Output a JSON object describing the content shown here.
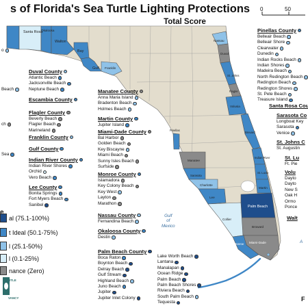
{
  "title": "s of Florida's Sea Turtle Lighting Protections",
  "subtitle": "Total Score",
  "scale": {
    "zero": "0",
    "fifty": "50"
  },
  "colors": {
    "ideal": "#1f4e8c",
    "almost_ideal": "#3f87c6",
    "better": "#8fc2e8",
    "minimal": "#d8eef8",
    "no_ordinance": "#8a8a8a",
    "land": "#e3ddcd",
    "water": "#ffffff"
  },
  "legend": {
    "title": "e",
    "items": [
      {
        "label": "al (75.1-100%)",
        "color": "#1f4e8c"
      },
      {
        "label": "t Ideal (50.1-75%)",
        "color": "#3f87c6"
      },
      {
        "label": "l (25.1-50%)",
        "color": "#8fc2e8"
      },
      {
        "label": "l (0.1-25%)",
        "color": "#d8eef8"
      },
      {
        "label": "nance (Zero)",
        "color": "#8a8a8a"
      }
    ]
  },
  "map_labels": {
    "santa_rosa": "Santa Rosa",
    "okaloosa": "Okaloosa",
    "walton": "Walton",
    "bay": "Bay",
    "gulf": "Gulf",
    "franklin": "Franklin",
    "nassau": "Nassau",
    "duval": "Duval",
    "st_johns": "St. Johns",
    "flagler": "Flagler",
    "volusia": "Volusia",
    "brevard": "Brevard",
    "indian_river": "Indian River",
    "st_lucie": "St. Lucie",
    "martin": "Martin",
    "palm_beach": "Palm Beach",
    "broward": "Broward",
    "miami_dade": "Miami-Dade",
    "monroe": "Monroe",
    "collier": "Collier",
    "lee": "Lee",
    "charlotte": "Charlotte",
    "sarasota": "Sarasota",
    "manatee": "Manatee",
    "pinellas": "Pinellas"
  },
  "water_labels": {
    "gulf": "Gulf\nof\nMexico",
    "atlantic": "A"
  },
  "counties": [
    {
      "name": "Duval County",
      "status": "#8fc2e8",
      "beaches": [
        {
          "name": "Atlantic Beach",
          "status": "#3f87c6"
        },
        {
          "name": "Jacksonville Beach",
          "status": "#3f87c6"
        },
        {
          "name": "Neptune Beach",
          "status": "#3f87c6"
        }
      ]
    },
    {
      "name": "Escambia County",
      "status": "#3f87c6",
      "beaches": []
    },
    {
      "name": "Flagler County",
      "status": "#8a8a8a",
      "beaches": [
        {
          "name": "Beverly Beach",
          "status": "#8a8a8a"
        },
        {
          "name": "Flagler Beach",
          "status": "#8a8a8a"
        },
        {
          "name": "Marineland",
          "status": "#8a8a8a"
        }
      ]
    },
    {
      "name": "Franklin County",
      "status": "#8fc2e8",
      "beaches": []
    },
    {
      "name": "Gulf County",
      "status": "#3f87c6",
      "beaches": []
    },
    {
      "name": "Indian River County",
      "status": "#3f87c6",
      "beaches": [
        {
          "name": "Indian River Shores",
          "status": "#3f87c6"
        },
        {
          "name": "Orchid",
          "status": "#d8eef8"
        },
        {
          "name": "Vero Beach",
          "status": "#3f87c6"
        }
      ]
    },
    {
      "name": "Lee County",
      "status": "#3f87c6",
      "beaches": [
        {
          "name": "Bonita Springs",
          "status": "#3f87c6"
        },
        {
          "name": "Fort Myers Beach",
          "status": "#3f87c6"
        },
        {
          "name": "Sanibel",
          "status": "#1f4e8c"
        }
      ]
    },
    {
      "name": "Manatee County",
      "status": "#8a8a8a",
      "beaches": [
        {
          "name": "Anna Maria Island",
          "status": "#8fc2e8"
        },
        {
          "name": "Bradenton Beach",
          "status": "#8fc2e8"
        },
        {
          "name": "Holmes Beach",
          "status": "#8fc2e8"
        }
      ]
    },
    {
      "name": "Martin County",
      "status": "#3f87c6",
      "beaches": [
        {
          "name": "Jupiter Island",
          "status": "#3f87c6"
        }
      ]
    },
    {
      "name": "Miami-Dade County",
      "status": "#8a8a8a",
      "beaches": [
        {
          "name": "Bal Harbor",
          "status": "#8a8a8a"
        },
        {
          "name": "Golden Beach",
          "status": "#8a8a8a"
        },
        {
          "name": "Key Biscayne",
          "status": "#8fc2e8"
        },
        {
          "name": "Miami Beach",
          "status": "#8a8a8a"
        },
        {
          "name": "Sunny Isles Beach",
          "status": "#8a8a8a"
        },
        {
          "name": "Surfside",
          "status": "#8a8a8a"
        }
      ]
    },
    {
      "name": "Monroe County",
      "status": "#3f87c6",
      "beaches": [
        {
          "name": "Islamadora",
          "status": "#8a8a8a"
        },
        {
          "name": "Key Colony Beach",
          "status": "#8a8a8a"
        },
        {
          "name": "Key West",
          "status": "#8fc2e8"
        },
        {
          "name": "Layton",
          "status": "#8a8a8a"
        },
        {
          "name": "Marathon",
          "status": "#8a8a8a"
        }
      ]
    },
    {
      "name": "Nassau County",
      "status": "#8fc2e8",
      "beaches": [
        {
          "name": "Fernandina Beach",
          "status": "#8fc2e8"
        }
      ]
    },
    {
      "name": "Okaloosa County",
      "status": "#3f87c6",
      "beaches": [
        {
          "name": "Destin",
          "status": "#8fc2e8"
        }
      ]
    },
    {
      "name": "Palm Beach County",
      "status": "#1f4e8c",
      "beaches": [
        {
          "name": "Boca Raton",
          "status": "#3f87c6"
        },
        {
          "name": "Boynton Beach",
          "status": "#1f4e8c"
        },
        {
          "name": "Delray Beach",
          "status": "#1f4e8c"
        },
        {
          "name": "Gulf Stream",
          "status": "#1f4e8c"
        },
        {
          "name": "Highland Beach",
          "status": "#8fc2e8"
        },
        {
          "name": "Juno Beach",
          "status": "#3f87c6"
        },
        {
          "name": "Jupiter",
          "status": "#1f4e8c"
        },
        {
          "name": "Jupiter Inlet Colony",
          "status": "#1f4e8c"
        }
      ]
    },
    {
      "name": "",
      "status": "",
      "beaches": [
        {
          "name": "Lake Worth Beach",
          "status": "#1f4e8c"
        },
        {
          "name": "Lantana",
          "status": "#1f4e8c"
        },
        {
          "name": "Manalapan",
          "status": "#1f4e8c"
        },
        {
          "name": "Ocean Ridge",
          "status": "#1f4e8c"
        },
        {
          "name": "Palm Beach",
          "status": "#1f4e8c"
        },
        {
          "name": "Palm Beach Shores",
          "status": "#1f4e8c"
        },
        {
          "name": "Riviera Beach",
          "status": "#1f4e8c"
        },
        {
          "name": "South Palm Beach",
          "status": "#8fc2e8"
        },
        {
          "name": "Tequesta",
          "status": "#1f4e8c"
        }
      ]
    },
    {
      "name": "Pinellas County",
      "status": "#3f87c6",
      "beaches": [
        {
          "name": "Belleair Beach",
          "status": "#8fc2e8"
        },
        {
          "name": "Belleair Shore",
          "status": "#8fc2e8"
        },
        {
          "name": "Clearwater",
          "status": "#8fc2e8"
        },
        {
          "name": "Dunedin",
          "status": "#8fc2e8"
        },
        {
          "name": "Indian Rocks Beach",
          "status": "#8fc2e8"
        },
        {
          "name": "Indian Shores",
          "status": "#8fc2e8"
        },
        {
          "name": "Madeira Beach",
          "status": "#8fc2e8"
        },
        {
          "name": "North Redington Beach",
          "status": "#8fc2e8"
        },
        {
          "name": "Redington Beach",
          "status": "#8fc2e8"
        },
        {
          "name": "Redington Shores",
          "status": "#8fc2e8"
        },
        {
          "name": "St. Pete Beach",
          "status": "#8fc2e8"
        },
        {
          "name": "Treasure Island",
          "status": "#3f87c6"
        }
      ]
    },
    {
      "name": "Santa Rosa County",
      "status": "",
      "beaches": []
    },
    {
      "name": "Sarasota Co",
      "status": "",
      "beaches": [
        {
          "name": "Longboat Key",
          "status": ""
        },
        {
          "name": "Sarasota",
          "status": "#3f87c6"
        },
        {
          "name": "Venice",
          "status": "#8fc2e8"
        }
      ]
    },
    {
      "name": "St. Johns C",
      "status": "",
      "beaches": [
        {
          "name": "St. Augustin",
          "status": ""
        }
      ]
    },
    {
      "name": "St. Lu",
      "status": "",
      "beaches": [
        {
          "name": "Ft. Pie",
          "status": ""
        }
      ]
    },
    {
      "name": "Volu",
      "status": "",
      "beaches": [
        {
          "name": "Dayto",
          "status": ""
        },
        {
          "name": "Dayto",
          "status": ""
        },
        {
          "name": "New S",
          "status": ""
        },
        {
          "name": "Oak H",
          "status": ""
        },
        {
          "name": "Ormo",
          "status": ""
        },
        {
          "name": "Ponce",
          "status": ""
        }
      ]
    },
    {
      "name": "Walt",
      "status": "",
      "beaches": []
    }
  ],
  "left_fragments": [
    "o",
    "Beach",
    "ch",
    "Sea"
  ],
  "logo": {
    "line1": "RTLE",
    "line2": "VANCY"
  },
  "edge_text": "F"
}
